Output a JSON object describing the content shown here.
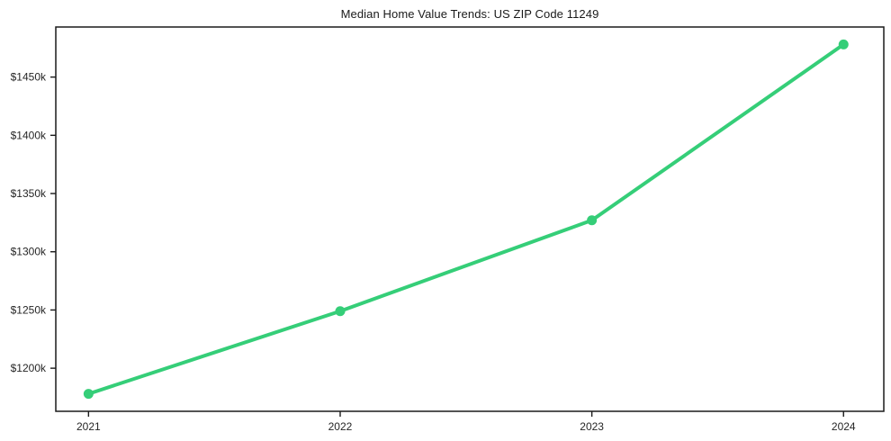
{
  "chart_data": {
    "type": "line",
    "title": "Median Home Value Trends: US ZIP Code 11249",
    "x": [
      2021,
      2022,
      2023,
      2024
    ],
    "x_tick_labels": [
      "2021",
      "2022",
      "2023",
      "2024"
    ],
    "values": [
      1178,
      1249,
      1327,
      1478
    ],
    "values_unit": "$k",
    "y_tick_values": [
      1200,
      1250,
      1300,
      1350,
      1400,
      1450
    ],
    "y_tick_labels": [
      "$1200k",
      "$1250k",
      "$1300k",
      "$1350k",
      "$1400k",
      "$1450k"
    ],
    "xlim": [
      2020.87,
      2024.16
    ],
    "ylim": [
      1163,
      1493
    ],
    "xlabel": "",
    "ylabel": "",
    "grid": false,
    "legend": false,
    "line_color": "#35ce78",
    "marker": "circle",
    "marker_radius": 5.5,
    "line_width": 4,
    "axis_color": "#1a1a1a",
    "text_color": "#262626",
    "background": "#ffffff"
  }
}
